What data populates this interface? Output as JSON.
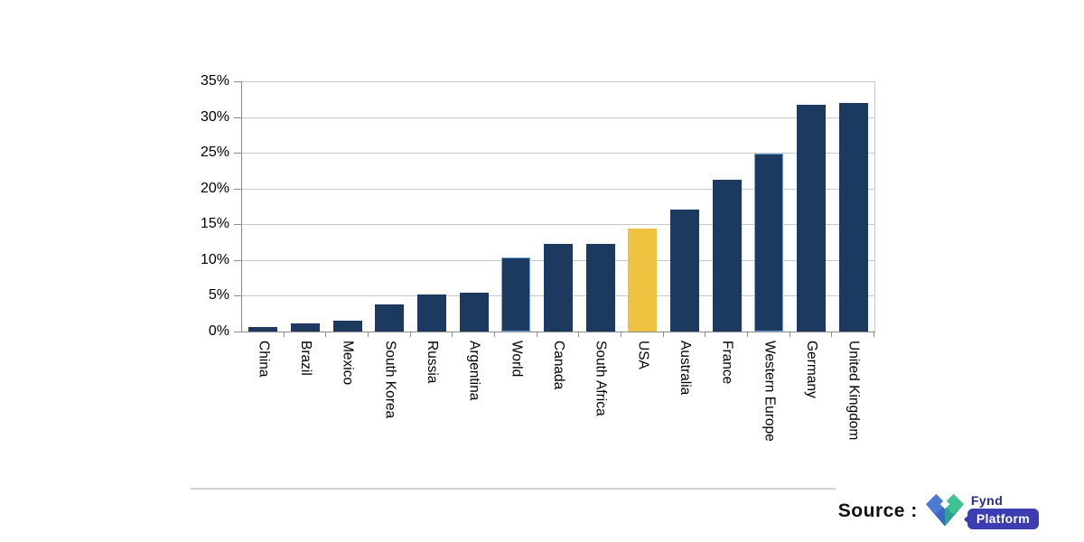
{
  "chart_data": {
    "type": "bar",
    "title": "",
    "xlabel": "",
    "ylabel": "",
    "unit": "%",
    "categories": [
      "China",
      "Brazil",
      "Mexico",
      "South Korea",
      "Russia",
      "Argentina",
      "World",
      "Canada",
      "South Africa",
      "USA",
      "Australia",
      "France",
      "Western Europe",
      "Germany",
      "United Kingdom"
    ],
    "values": [
      0.6,
      1.2,
      1.5,
      3.8,
      5.2,
      5.4,
      10.4,
      12.2,
      12.2,
      14.4,
      17.1,
      21.2,
      24.9,
      31.7,
      32.0
    ],
    "ylim": [
      0,
      35
    ],
    "ytick_step": 5,
    "ytick_labels": [
      "0%",
      "5%",
      "10%",
      "15%",
      "20%",
      "25%",
      "30%",
      "35%"
    ],
    "grid": true,
    "legend": "none",
    "highlight_category": "USA",
    "highlight_index": 9,
    "outlined_indices": [
      6,
      12
    ],
    "colors": {
      "bar": "#1C3A5F",
      "highlight": "#F0C242",
      "outline": "#6FA8DC",
      "gridline": "#C9C9C9",
      "axis": "#8A8A8A"
    }
  },
  "footer": {
    "source_label": "Source :",
    "logo": {
      "brand": "Fynd",
      "product": "Platform",
      "brand_color": "#272B8A",
      "badge_color": "#3C3DB2",
      "mark_colors": {
        "left": "#4E7BD2",
        "right": "#3EC28F",
        "bottom_left": "#3E63C9",
        "bottom_right": "#2FA093",
        "center": "#FFFFFF"
      }
    }
  }
}
